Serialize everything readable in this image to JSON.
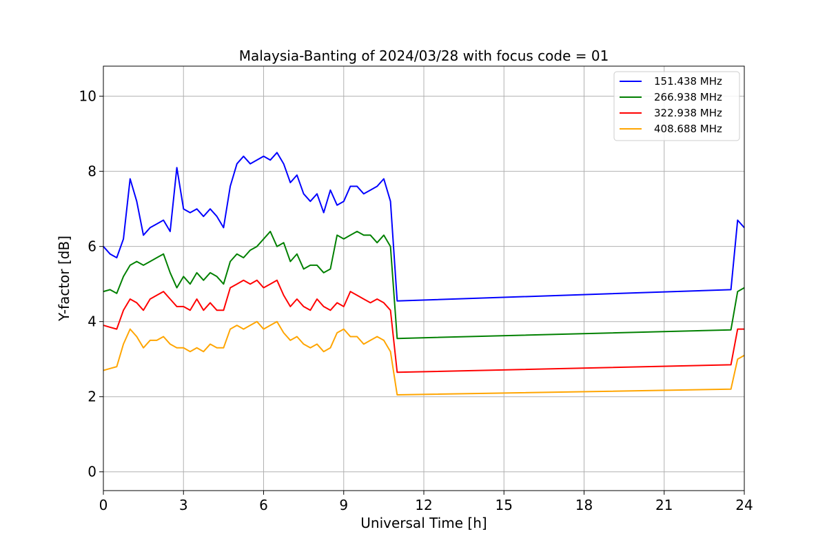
{
  "chart_data": {
    "type": "line",
    "title": "Malaysia-Banting of 2024/03/28 with focus code = 01",
    "xlabel": "Universal Time [h]",
    "ylabel": "Y-factor [dB]",
    "xlim": [
      0,
      24
    ],
    "ylim": [
      -0.5,
      10.8
    ],
    "xticks": [
      0,
      3,
      6,
      9,
      12,
      15,
      18,
      21,
      24
    ],
    "yticks": [
      0,
      2,
      4,
      6,
      8,
      10
    ],
    "grid": true,
    "legend_position": "top-right",
    "x": [
      0,
      0.25,
      0.5,
      0.75,
      1.0,
      1.25,
      1.5,
      1.75,
      2.0,
      2.25,
      2.5,
      2.75,
      3.0,
      3.25,
      3.5,
      3.75,
      4.0,
      4.25,
      4.5,
      4.75,
      5.0,
      5.25,
      5.5,
      5.75,
      6.0,
      6.25,
      6.5,
      6.75,
      7.0,
      7.25,
      7.5,
      7.75,
      8.0,
      8.25,
      8.5,
      8.75,
      9.0,
      9.25,
      9.5,
      9.75,
      10.0,
      10.25,
      10.5,
      10.75,
      11.0,
      23.5,
      23.75,
      24.0
    ],
    "series": [
      {
        "name": "151.438 MHz",
        "color": "#0000ff",
        "values": [
          6.0,
          5.8,
          5.7,
          6.2,
          7.8,
          7.2,
          6.3,
          6.5,
          6.6,
          6.7,
          6.4,
          8.1,
          7.0,
          6.9,
          7.0,
          6.8,
          7.0,
          6.8,
          6.5,
          7.6,
          8.2,
          8.4,
          8.2,
          8.3,
          8.4,
          8.3,
          8.5,
          8.2,
          7.7,
          7.9,
          7.4,
          7.2,
          7.4,
          6.9,
          7.5,
          7.1,
          7.2,
          7.6,
          7.6,
          7.4,
          7.5,
          7.6,
          7.8,
          7.2,
          4.55,
          4.85,
          6.7,
          6.5
        ]
      },
      {
        "name": "266.938 MHz",
        "color": "#008000",
        "values": [
          4.8,
          4.85,
          4.75,
          5.2,
          5.5,
          5.6,
          5.5,
          5.6,
          5.7,
          5.8,
          5.3,
          4.9,
          5.2,
          5.0,
          5.3,
          5.1,
          5.3,
          5.2,
          5.0,
          5.6,
          5.8,
          5.7,
          5.9,
          6.0,
          6.2,
          6.4,
          6.0,
          6.1,
          5.6,
          5.8,
          5.4,
          5.5,
          5.5,
          5.3,
          5.4,
          6.3,
          6.2,
          6.3,
          6.4,
          6.3,
          6.3,
          6.1,
          6.3,
          6.0,
          3.55,
          3.78,
          4.8,
          4.9
        ]
      },
      {
        "name": "322.938 MHz",
        "color": "#ff0000",
        "values": [
          3.9,
          3.85,
          3.8,
          4.3,
          4.6,
          4.5,
          4.3,
          4.6,
          4.7,
          4.8,
          4.6,
          4.4,
          4.4,
          4.3,
          4.6,
          4.3,
          4.5,
          4.3,
          4.3,
          4.9,
          5.0,
          5.1,
          5.0,
          5.1,
          4.9,
          5.0,
          5.1,
          4.7,
          4.4,
          4.6,
          4.4,
          4.3,
          4.6,
          4.4,
          4.3,
          4.5,
          4.4,
          4.8,
          4.7,
          4.6,
          4.5,
          4.6,
          4.5,
          4.3,
          2.65,
          2.85,
          3.8,
          3.8
        ]
      },
      {
        "name": "408.688 MHz",
        "color": "#ffa500",
        "values": [
          2.7,
          2.75,
          2.8,
          3.4,
          3.8,
          3.6,
          3.3,
          3.5,
          3.5,
          3.6,
          3.4,
          3.3,
          3.3,
          3.2,
          3.3,
          3.2,
          3.4,
          3.3,
          3.3,
          3.8,
          3.9,
          3.8,
          3.9,
          4.0,
          3.8,
          3.9,
          4.0,
          3.7,
          3.5,
          3.6,
          3.4,
          3.3,
          3.4,
          3.2,
          3.3,
          3.7,
          3.8,
          3.6,
          3.6,
          3.4,
          3.5,
          3.6,
          3.5,
          3.2,
          2.05,
          2.2,
          3.0,
          3.1
        ]
      }
    ]
  }
}
